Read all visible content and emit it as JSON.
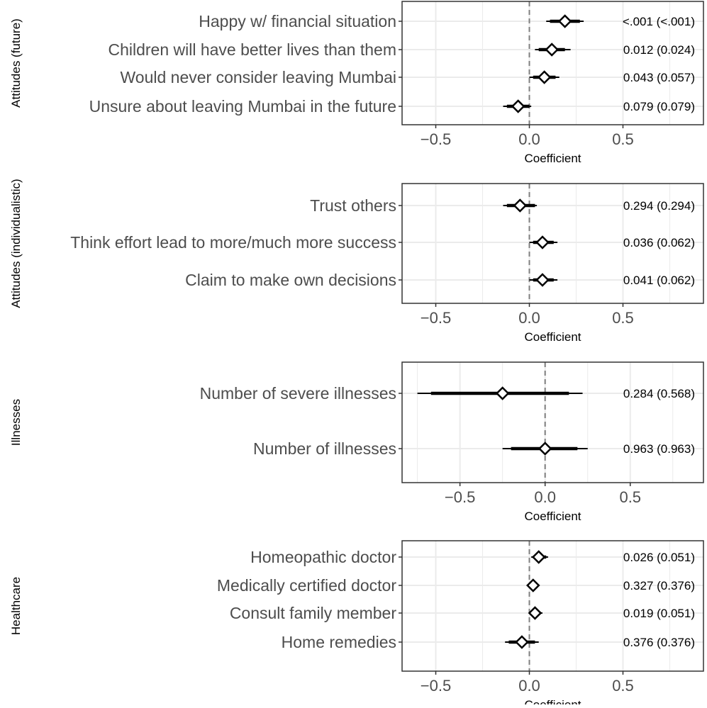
{
  "chart_data": [
    {
      "type": "scatter",
      "facet": "Attitudes (future)",
      "xlabel": "Coefficient",
      "xlim": [
        -0.68,
        0.93
      ],
      "xticks": [
        -0.5,
        0.0,
        0.5
      ],
      "xtick_labels": [
        "−0.5",
        "0.0",
        "0.5"
      ],
      "reference_line": 0,
      "grid": true,
      "rows": [
        {
          "label": "Happy w/ financial situation",
          "estimate": 0.19,
          "ci90": [
            0.11,
            0.27
          ],
          "ci95": [
            0.09,
            0.29
          ],
          "pvalue": "<.001 (<.001)"
        },
        {
          "label": "Children will have better lives than them",
          "estimate": 0.12,
          "ci90": [
            0.05,
            0.19
          ],
          "ci95": [
            0.03,
            0.22
          ],
          "pvalue": "0.012 (0.024)"
        },
        {
          "label": "Would never consider leaving Mumbai",
          "estimate": 0.08,
          "ci90": [
            0.02,
            0.14
          ],
          "ci95": [
            0.0,
            0.16
          ],
          "pvalue": "0.043 (0.057)"
        },
        {
          "label": "Unsure about leaving Mumbai in the future",
          "estimate": -0.06,
          "ci90": [
            -0.12,
            0.0
          ],
          "ci95": [
            -0.14,
            0.01
          ],
          "pvalue": "0.079 (0.079)"
        }
      ]
    },
    {
      "type": "scatter",
      "facet": "Attitudes (individualistic)",
      "xlabel": "Coefficient",
      "xlim": [
        -0.68,
        0.93
      ],
      "xticks": [
        -0.5,
        0.0,
        0.5
      ],
      "xtick_labels": [
        "−0.5",
        "0.0",
        "0.5"
      ],
      "reference_line": 0,
      "grid": true,
      "rows": [
        {
          "label": "Trust others",
          "estimate": -0.05,
          "ci90": [
            -0.12,
            0.03
          ],
          "ci95": [
            -0.14,
            0.04
          ],
          "pvalue": "0.294 (0.294)"
        },
        {
          "label": "Think effort lead to more/much more success",
          "estimate": 0.07,
          "ci90": [
            0.02,
            0.13
          ],
          "ci95": [
            0.0,
            0.15
          ],
          "pvalue": "0.036 (0.062)"
        },
        {
          "label": "Claim to make own decisions",
          "estimate": 0.07,
          "ci90": [
            0.02,
            0.13
          ],
          "ci95": [
            0.0,
            0.15
          ],
          "pvalue": "0.041 (0.062)"
        }
      ]
    },
    {
      "type": "scatter",
      "facet": "Illnesses",
      "xlabel": "Coefficient",
      "xlim": [
        -0.84,
        0.93
      ],
      "xticks": [
        -0.5,
        0.0,
        0.5
      ],
      "xtick_labels": [
        "−0.5",
        "0.0",
        "0.5"
      ],
      "reference_line": 0,
      "grid": true,
      "rows": [
        {
          "label": "Number of severe illnesses",
          "estimate": -0.25,
          "ci90": [
            -0.67,
            0.14
          ],
          "ci95": [
            -0.75,
            0.22
          ],
          "pvalue": "0.284 (0.568)"
        },
        {
          "label": "Number of illnesses",
          "estimate": 0.0,
          "ci90": [
            -0.2,
            0.19
          ],
          "ci95": [
            -0.25,
            0.25
          ],
          "pvalue": "0.963 (0.963)"
        }
      ]
    },
    {
      "type": "scatter",
      "facet": "Healthcare",
      "xlabel": "Coefficient",
      "xlim": [
        -0.68,
        0.93
      ],
      "xticks": [
        -0.5,
        0.0,
        0.5
      ],
      "xtick_labels": [
        "−0.5",
        "0.0",
        "0.5"
      ],
      "reference_line": 0,
      "grid": true,
      "rows": [
        {
          "label": "Homeopathic doctor",
          "estimate": 0.05,
          "ci90": [
            0.02,
            0.09
          ],
          "ci95": [
            0.01,
            0.1
          ],
          "pvalue": "0.026 (0.051)"
        },
        {
          "label": "Medically certified doctor",
          "estimate": 0.02,
          "ci90": [
            0.0,
            0.04
          ],
          "ci95": [
            -0.01,
            0.05
          ],
          "pvalue": "0.327 (0.376)"
        },
        {
          "label": "Consult family member",
          "estimate": 0.03,
          "ci90": [
            0.01,
            0.06
          ],
          "ci95": [
            0.0,
            0.07
          ],
          "pvalue": "0.019 (0.051)"
        },
        {
          "label": "Home remedies",
          "estimate": -0.04,
          "ci90": [
            -0.11,
            0.03
          ],
          "ci95": [
            -0.13,
            0.05
          ],
          "pvalue": "0.376 (0.376)"
        }
      ]
    }
  ],
  "style": {
    "panel_border": "#333333",
    "grid_color": "#ebebeb",
    "ref_line_color": "#7f7f7f",
    "mark_color": "#000000",
    "tick_text_color": "#4d4d4d"
  }
}
